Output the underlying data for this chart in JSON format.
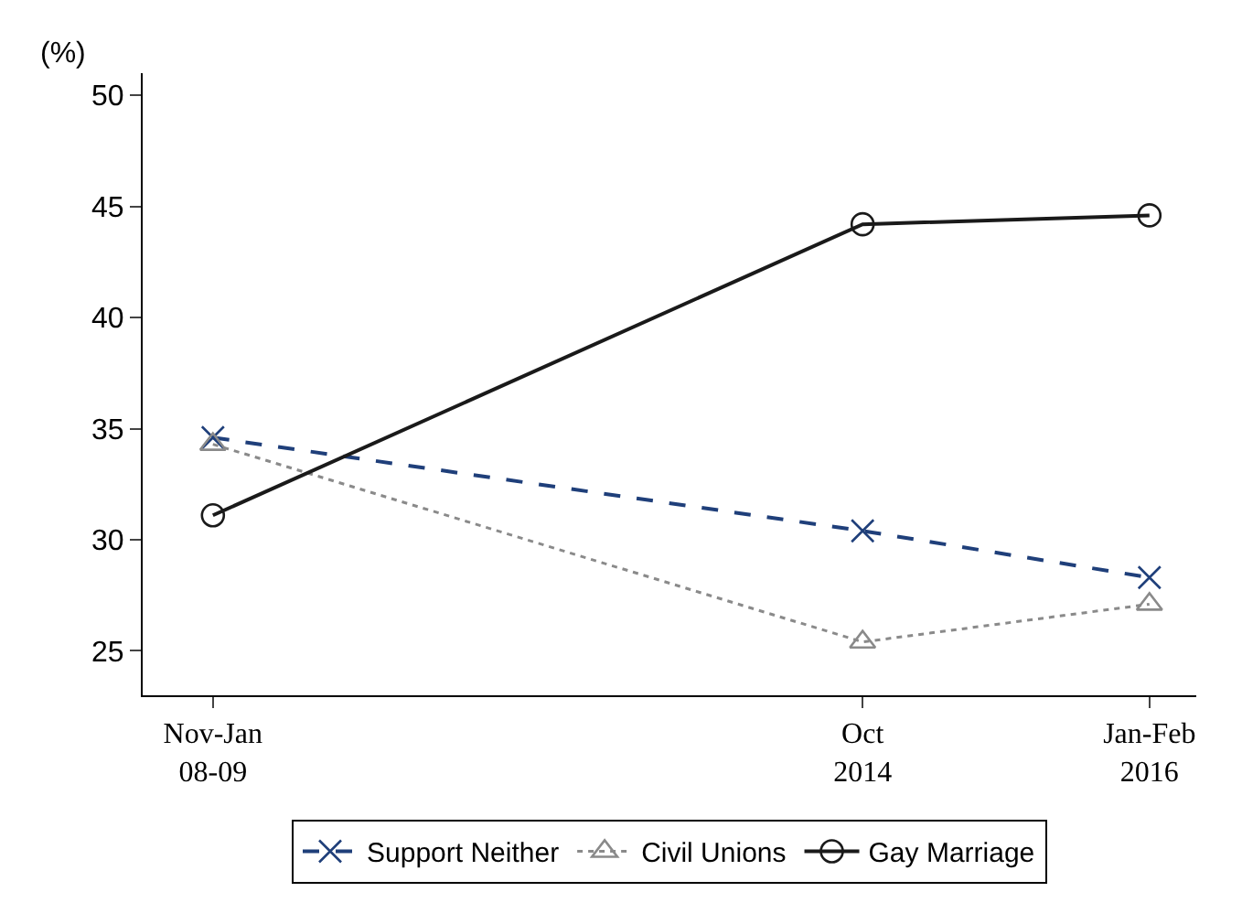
{
  "chart_data": {
    "type": "line",
    "ylabel": "(%)",
    "categories": [
      "Nov-Jan\n08-09",
      "Oct\n2014",
      "Jan-Feb\n2016"
    ],
    "series": [
      {
        "name": "Support Neither",
        "color": "#1f3f7a",
        "values": [
          34.6,
          30.4,
          28.3
        ],
        "marker": "cross",
        "line_style": "dashed"
      },
      {
        "name": "Civil Unions",
        "color": "#8a8a8a",
        "values": [
          34.3,
          25.4,
          27.1
        ],
        "marker": "triangle",
        "line_style": "dotted"
      },
      {
        "name": "Gay Marriage",
        "color": "#1a1a1a",
        "values": [
          31.1,
          44.2,
          44.6
        ],
        "marker": "circle",
        "line_style": "solid"
      }
    ],
    "ylim": [
      23,
      51
    ],
    "yticks": [
      25,
      30,
      35,
      40,
      45,
      50
    ],
    "legend": "bottom"
  }
}
